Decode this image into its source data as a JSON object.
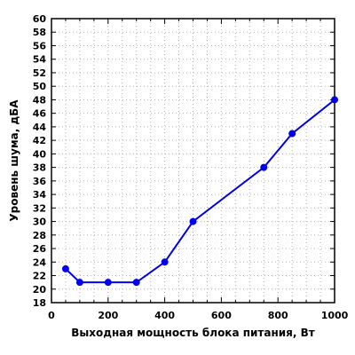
{
  "chart_data": {
    "type": "line",
    "title": "",
    "xlabel": "Выходная мощность блока питания, Вт",
    "ylabel": "Уровень шума, дБА",
    "xlim": [
      0,
      1000
    ],
    "ylim": [
      18,
      60
    ],
    "x_ticks": [
      0,
      200,
      400,
      600,
      800,
      1000
    ],
    "y_ticks": [
      18,
      20,
      22,
      24,
      26,
      28,
      30,
      32,
      34,
      36,
      38,
      40,
      42,
      44,
      46,
      48,
      50,
      52,
      54,
      56,
      58,
      60
    ],
    "x_minor_step": 50,
    "grid": true,
    "legend": "none",
    "series": [
      {
        "color": "#0000ee",
        "x": [
          50,
          100,
          200,
          300,
          400,
          500,
          750,
          850,
          1000
        ],
        "y": [
          23,
          21,
          21,
          21,
          24,
          30,
          38,
          43,
          48
        ]
      }
    ]
  }
}
